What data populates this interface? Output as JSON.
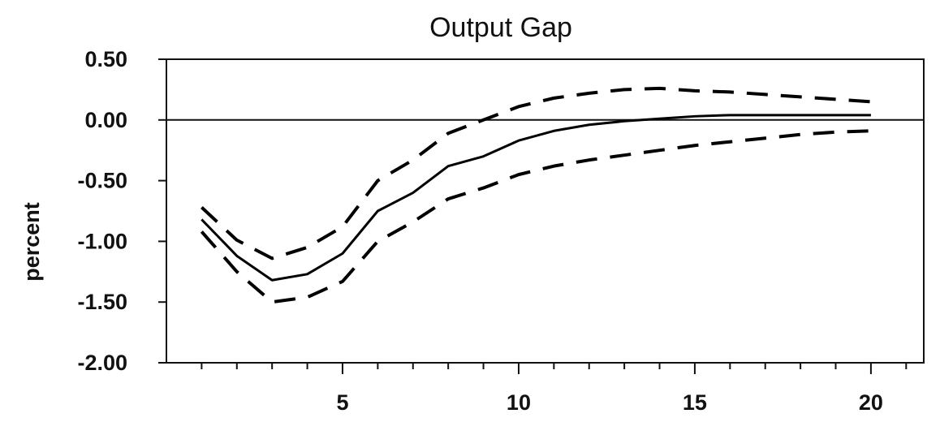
{
  "chart_data": {
    "type": "line",
    "title": "Output Gap",
    "xlabel": "",
    "ylabel": "percent",
    "xlim": [
      0,
      21.5
    ],
    "ylim": [
      -2.0,
      0.5
    ],
    "xticks": [
      5,
      10,
      15,
      20
    ],
    "xtick_labels": [
      "5",
      "10",
      "15",
      "20"
    ],
    "yticks": [
      0.5,
      0.0,
      -0.5,
      -1.0,
      -1.5,
      -2.0
    ],
    "ytick_labels": [
      "0.50",
      "0.00",
      "-0.50",
      "-1.00",
      "-1.50",
      "-2.00"
    ],
    "zero_line": true,
    "grid": false,
    "legend": "none",
    "x": [
      1,
      2,
      3,
      4,
      5,
      6,
      7,
      8,
      9,
      10,
      11,
      12,
      13,
      14,
      15,
      16,
      17,
      18,
      19,
      20
    ],
    "series": [
      {
        "style": "solid",
        "values": [
          -0.82,
          -1.12,
          -1.32,
          -1.27,
          -1.1,
          -0.75,
          -0.6,
          -0.38,
          -0.3,
          -0.17,
          -0.09,
          -0.04,
          -0.01,
          0.01,
          0.03,
          0.04,
          0.04,
          0.04,
          0.04,
          0.04
        ]
      },
      {
        "style": "dashed",
        "values": [
          -0.72,
          -0.99,
          -1.14,
          -1.05,
          -0.88,
          -0.5,
          -0.33,
          -0.11,
          0.0,
          0.11,
          0.18,
          0.22,
          0.25,
          0.26,
          0.24,
          0.23,
          0.21,
          0.19,
          0.17,
          0.15
        ]
      },
      {
        "style": "dashed",
        "values": [
          -0.92,
          -1.25,
          -1.5,
          -1.46,
          -1.33,
          -1.0,
          -0.84,
          -0.65,
          -0.56,
          -0.45,
          -0.38,
          -0.33,
          -0.29,
          -0.25,
          -0.21,
          -0.18,
          -0.15,
          -0.12,
          -0.1,
          -0.09
        ]
      }
    ]
  }
}
